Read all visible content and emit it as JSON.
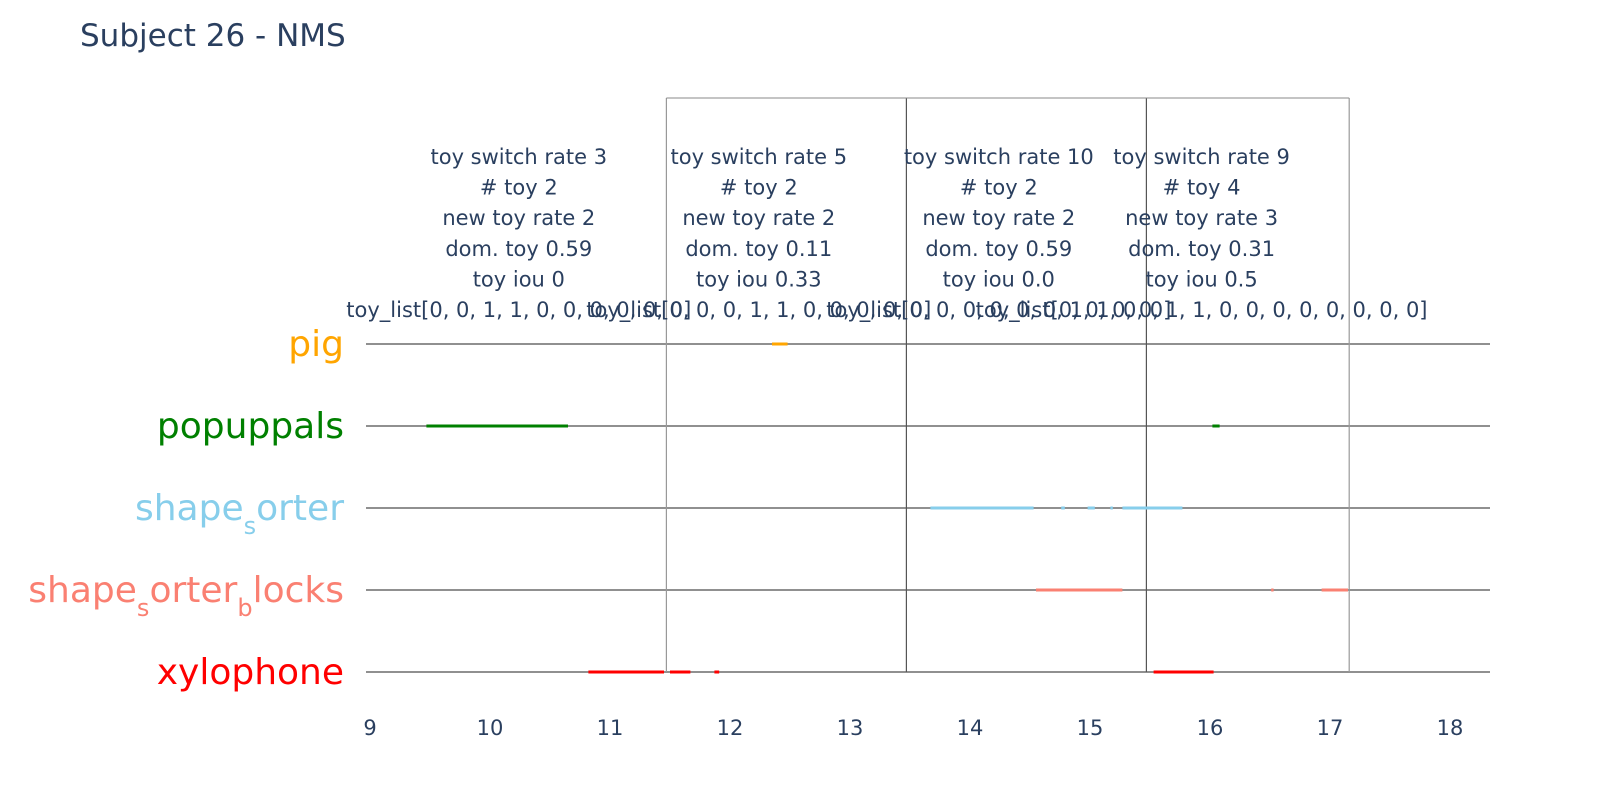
{
  "title": "Subject 26 - NMS",
  "chart_data": {
    "type": "timeline",
    "title": "Subject 26 - NMS",
    "xlim": [
      9,
      18.3
    ],
    "xticks": [
      9,
      10,
      11,
      12,
      13,
      14,
      15,
      16,
      17,
      18
    ],
    "grid": false,
    "categories": [
      "pig",
      "popuppals",
      "shape_sorter",
      "shape_sorter_blocks",
      "xylophone"
    ],
    "category_labels": [
      {
        "base": "pig",
        "parts": [
          {
            "t": "pig",
            "sub": false
          }
        ]
      },
      {
        "base": "popuppals",
        "parts": [
          {
            "t": "popuppals",
            "sub": false
          }
        ]
      },
      {
        "base": "shape_sorter",
        "parts": [
          {
            "t": "shape",
            "sub": false
          },
          {
            "t": "s",
            "sub": true
          },
          {
            "t": "orter",
            "sub": false
          }
        ]
      },
      {
        "base": "shape_sorter_blocks",
        "parts": [
          {
            "t": "shape",
            "sub": false
          },
          {
            "t": "s",
            "sub": true
          },
          {
            "t": "orter",
            "sub": false
          },
          {
            "t": "b",
            "sub": true
          },
          {
            "t": "locks",
            "sub": false
          }
        ]
      },
      {
        "base": "xylophone",
        "parts": [
          {
            "t": "xylophone",
            "sub": false
          }
        ]
      }
    ],
    "colors": {
      "pig": "#FFA500",
      "popuppals": "#008000",
      "shape_sorter": "#87CEEB",
      "shape_sorter_blocks": "#FA8072",
      "xylophone": "#FF0000"
    },
    "boundaries": [
      11.47,
      13.47,
      15.47,
      17.16
    ],
    "segments": [
      {
        "toy": "pig",
        "start": 12.35,
        "end": 12.48
      },
      {
        "toy": "popuppals",
        "start": 9.47,
        "end": 10.65
      },
      {
        "toy": "popuppals",
        "start": 16.02,
        "end": 16.08
      },
      {
        "toy": "shape_sorter",
        "start": 13.67,
        "end": 14.53
      },
      {
        "toy": "shape_sorter",
        "start": 14.76,
        "end": 14.79
      },
      {
        "toy": "shape_sorter",
        "start": 14.98,
        "end": 15.04
      },
      {
        "toy": "shape_sorter",
        "start": 15.17,
        "end": 15.19
      },
      {
        "toy": "shape_sorter",
        "start": 15.27,
        "end": 15.77
      },
      {
        "toy": "shape_sorter_blocks",
        "start": 14.55,
        "end": 15.27
      },
      {
        "toy": "shape_sorter_blocks",
        "start": 16.51,
        "end": 16.53
      },
      {
        "toy": "shape_sorter_blocks",
        "start": 16.93,
        "end": 17.15
      },
      {
        "toy": "xylophone",
        "start": 10.82,
        "end": 11.45
      },
      {
        "toy": "xylophone",
        "start": 11.5,
        "end": 11.67
      },
      {
        "toy": "xylophone",
        "start": 11.87,
        "end": 11.91
      },
      {
        "toy": "xylophone",
        "start": 15.53,
        "end": 16.03
      }
    ],
    "annotations": [
      {
        "x": 10.24,
        "lines": [
          "toy switch rate 3",
          "# toy 2",
          "new toy rate 2",
          "dom. toy 0.59",
          "toy iou 0",
          "toy_list[0, 0, 1, 1, 0, 0, 0, 0, 0, 0]"
        ]
      },
      {
        "x": 12.24,
        "lines": [
          "toy switch rate 5",
          "# toy 2",
          "new toy rate 2",
          "dom. toy 0.11",
          "toy iou 0.33",
          "toy_list[0, 0, 0, 1, 1, 0, 0, 0, 0, 0]"
        ]
      },
      {
        "x": 14.24,
        "lines": [
          "toy switch rate 10",
          "# toy 2",
          "new toy rate 2",
          "dom. toy 0.59",
          "toy iou 0.0",
          "toy_list[0, 0, 0, 0, 0, 0, 1, 1, 0, 0]"
        ]
      },
      {
        "x": 15.93,
        "lines": [
          "toy switch rate 9",
          "# toy 4",
          "new toy rate 3",
          "dom. toy 0.31",
          "toy iou 0.5",
          "toy_list[0, 0, 0, 0, 1, 1, 0, 0, 0, 0, 0, 0, 0, 0]"
        ]
      }
    ]
  }
}
